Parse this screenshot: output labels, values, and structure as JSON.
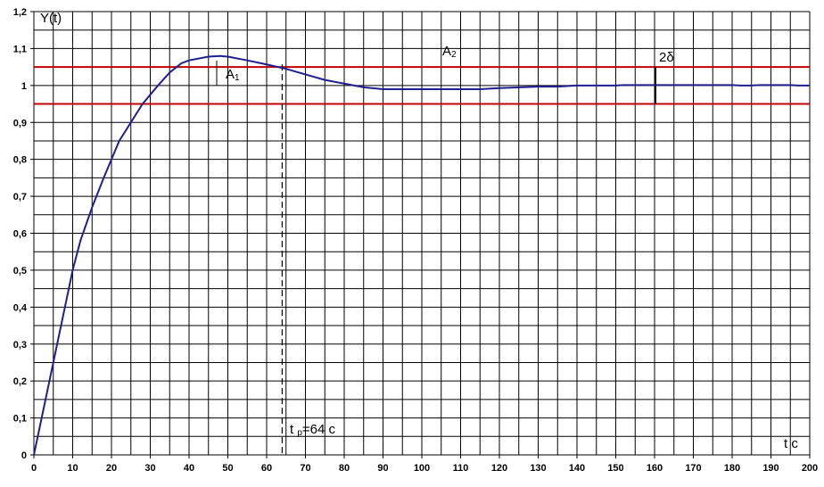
{
  "chart_data": {
    "type": "line",
    "x": [
      0,
      2,
      4,
      6,
      8,
      10,
      12,
      15,
      18,
      20,
      22,
      25,
      28,
      30,
      32,
      35,
      38,
      40,
      45,
      48,
      50,
      55,
      60,
      65,
      70,
      75,
      80,
      85,
      90,
      95,
      100,
      110,
      115,
      120,
      130,
      135,
      140,
      150,
      152,
      160,
      170,
      180,
      182,
      185,
      187,
      195,
      197,
      200
    ],
    "series": [
      {
        "color": "#1f1f8f",
        "values": [
          0,
          0.1,
          0.2,
          0.3,
          0.4,
          0.5,
          0.58,
          0.67,
          0.75,
          0.8,
          0.85,
          0.9,
          0.95,
          0.975,
          1.0,
          1.035,
          1.06,
          1.068,
          1.078,
          1.08,
          1.078,
          1.068,
          1.057,
          1.045,
          1.03,
          1.015,
          1.005,
          0.995,
          0.99,
          0.99,
          0.99,
          0.99,
          0.99,
          0.993,
          0.997,
          0.997,
          1.0,
          1.0,
          1.001,
          1.001,
          1.001,
          1.001,
          1.0,
          1.0,
          1.001,
          1.001,
          1.0,
          1.0
        ]
      }
    ],
    "xlim": [
      0,
      200
    ],
    "ylim": [
      0,
      1.2
    ],
    "xticks": [
      0,
      10,
      20,
      30,
      40,
      50,
      60,
      70,
      80,
      90,
      100,
      110,
      120,
      130,
      140,
      150,
      160,
      170,
      180,
      190,
      200
    ],
    "yticks": [
      0,
      {
        "value": 0.1,
        "label": "0,1"
      },
      {
        "value": 0.2,
        "label": "0,2"
      },
      {
        "value": 0.3,
        "label": "0,3"
      },
      {
        "value": 0.4,
        "label": "0,4"
      },
      {
        "value": 0.5,
        "label": "0,5"
      },
      {
        "value": 0.6,
        "label": "0,6"
      },
      {
        "value": 0.7,
        "label": "0,7"
      },
      {
        "value": 0.8,
        "label": "0,8"
      },
      {
        "value": 0.9,
        "label": "0,9"
      },
      1,
      {
        "value": 1.1,
        "label": "1,1"
      },
      {
        "value": 1.2,
        "label": "1,2"
      }
    ],
    "xgrid": [
      0,
      5,
      10,
      15,
      20,
      25,
      30,
      35,
      40,
      45,
      50,
      55,
      60,
      65,
      70,
      75,
      80,
      85,
      90,
      95,
      100,
      105,
      110,
      115,
      120,
      125,
      130,
      135,
      140,
      145,
      150,
      155,
      160,
      165,
      170,
      175,
      180,
      185,
      190,
      195,
      200
    ],
    "ygrid": [
      0,
      0.05,
      0.1,
      0.15,
      0.2,
      0.25,
      0.3,
      0.35,
      0.4,
      0.45,
      0.5,
      0.55,
      0.6,
      0.65,
      0.7,
      0.75,
      0.8,
      0.85,
      0.9,
      0.95,
      1,
      1.05,
      1.1,
      1.15,
      1.2
    ],
    "band_lines": {
      "color": "#c00000",
      "values": [
        1.05,
        0.95
      ]
    },
    "settling_time": 64,
    "annotations": [
      {
        "text": "Y(t)"
      },
      {
        "text": "t  c"
      },
      {
        "text": "A",
        "sub": "1"
      },
      {
        "text": "A",
        "sub": "2"
      },
      {
        "text": "2δ"
      },
      {
        "text": "t ",
        "sub": "р",
        "after": "=64 c"
      }
    ]
  }
}
